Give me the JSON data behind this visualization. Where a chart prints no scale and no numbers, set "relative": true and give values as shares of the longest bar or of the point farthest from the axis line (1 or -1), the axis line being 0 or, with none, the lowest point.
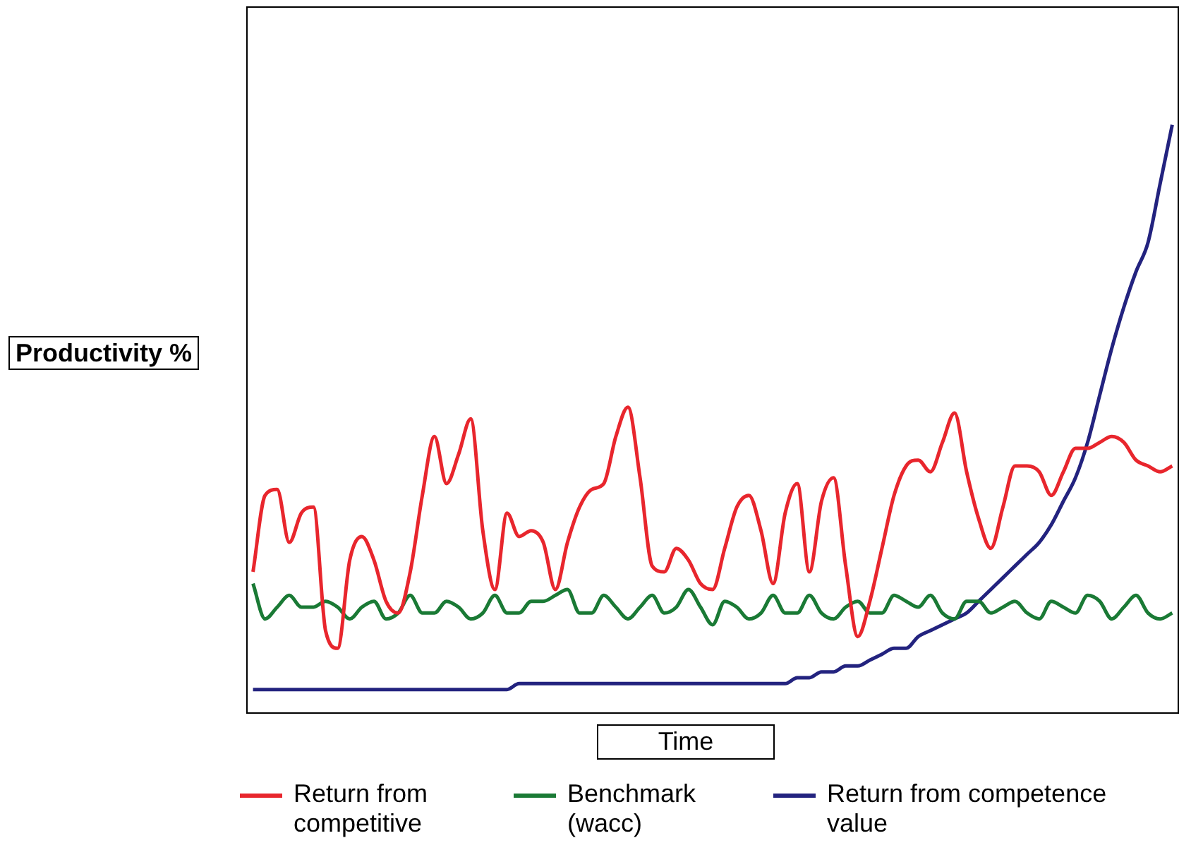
{
  "chart_data": {
    "type": "line",
    "relative": true,
    "xlabel": "Time",
    "ylabel": "Productivity %",
    "legend": "bottom",
    "marker": "none",
    "line_style": "solid",
    "categories": [
      null,
      null,
      null,
      null,
      null,
      null,
      null,
      null,
      null,
      null,
      null,
      null,
      null,
      null,
      null,
      null,
      null,
      null,
      null,
      null,
      null,
      null,
      null,
      null,
      null,
      null,
      null,
      null,
      null,
      null,
      null,
      null,
      null,
      null,
      null,
      null,
      null,
      null,
      null,
      null,
      null,
      null,
      null,
      null,
      null,
      null,
      null,
      null,
      null,
      null,
      null,
      null,
      null,
      null,
      null,
      null,
      null,
      null,
      null,
      null,
      null,
      null,
      null,
      null,
      null,
      null,
      null,
      null,
      null,
      null,
      null,
      null,
      null,
      null,
      null,
      null,
      null
    ],
    "series": [
      {
        "name": "Return from competitive",
        "color": "#e8262d",
        "values": [
          0.24,
          0.37,
          0.38,
          0.29,
          0.34,
          0.35,
          0.14,
          0.11,
          0.26,
          0.3,
          0.26,
          0.19,
          0.17,
          0.24,
          0.37,
          0.47,
          0.39,
          0.44,
          0.5,
          0.31,
          0.21,
          0.34,
          0.3,
          0.31,
          0.29,
          0.21,
          0.29,
          0.35,
          0.38,
          0.39,
          0.47,
          0.52,
          0.4,
          0.25,
          0.24,
          0.28,
          0.26,
          0.22,
          0.21,
          0.28,
          0.35,
          0.37,
          0.31,
          0.22,
          0.34,
          0.39,
          0.24,
          0.36,
          0.4,
          0.25,
          0.13,
          0.19,
          0.28,
          0.37,
          0.42,
          0.43,
          0.41,
          0.46,
          0.51,
          0.41,
          0.33,
          0.28,
          0.35,
          0.42,
          0.42,
          0.41,
          0.37,
          0.41,
          0.45,
          0.45,
          0.46,
          0.47,
          0.46,
          0.43,
          0.42,
          0.41,
          0.42
        ]
      },
      {
        "name": "Benchmark (wacc)",
        "color": "#1a7a35",
        "values": [
          0.22,
          0.16,
          0.18,
          0.2,
          0.18,
          0.18,
          0.19,
          0.18,
          0.16,
          0.18,
          0.19,
          0.16,
          0.17,
          0.2,
          0.17,
          0.17,
          0.19,
          0.18,
          0.16,
          0.17,
          0.2,
          0.17,
          0.17,
          0.19,
          0.19,
          0.2,
          0.21,
          0.17,
          0.17,
          0.2,
          0.18,
          0.16,
          0.18,
          0.2,
          0.17,
          0.18,
          0.21,
          0.18,
          0.15,
          0.19,
          0.18,
          0.16,
          0.17,
          0.2,
          0.17,
          0.17,
          0.2,
          0.17,
          0.16,
          0.18,
          0.19,
          0.17,
          0.17,
          0.2,
          0.19,
          0.18,
          0.2,
          0.17,
          0.16,
          0.19,
          0.19,
          0.17,
          0.18,
          0.19,
          0.17,
          0.16,
          0.19,
          0.18,
          0.17,
          0.2,
          0.19,
          0.16,
          0.18,
          0.2,
          0.17,
          0.16,
          0.17
        ]
      },
      {
        "name": "Return from competence value",
        "color": "#23237f",
        "values": [
          0.04,
          0.04,
          0.04,
          0.04,
          0.04,
          0.04,
          0.04,
          0.04,
          0.04,
          0.04,
          0.04,
          0.04,
          0.04,
          0.04,
          0.04,
          0.04,
          0.04,
          0.04,
          0.04,
          0.04,
          0.04,
          0.04,
          0.05,
          0.05,
          0.05,
          0.05,
          0.05,
          0.05,
          0.05,
          0.05,
          0.05,
          0.05,
          0.05,
          0.05,
          0.05,
          0.05,
          0.05,
          0.05,
          0.05,
          0.05,
          0.05,
          0.05,
          0.05,
          0.05,
          0.05,
          0.06,
          0.06,
          0.07,
          0.07,
          0.08,
          0.08,
          0.09,
          0.1,
          0.11,
          0.11,
          0.13,
          0.14,
          0.15,
          0.16,
          0.17,
          0.19,
          0.21,
          0.23,
          0.25,
          0.27,
          0.29,
          0.32,
          0.36,
          0.4,
          0.46,
          0.54,
          0.62,
          0.69,
          0.75,
          0.8,
          0.9,
          1
        ]
      }
    ]
  }
}
